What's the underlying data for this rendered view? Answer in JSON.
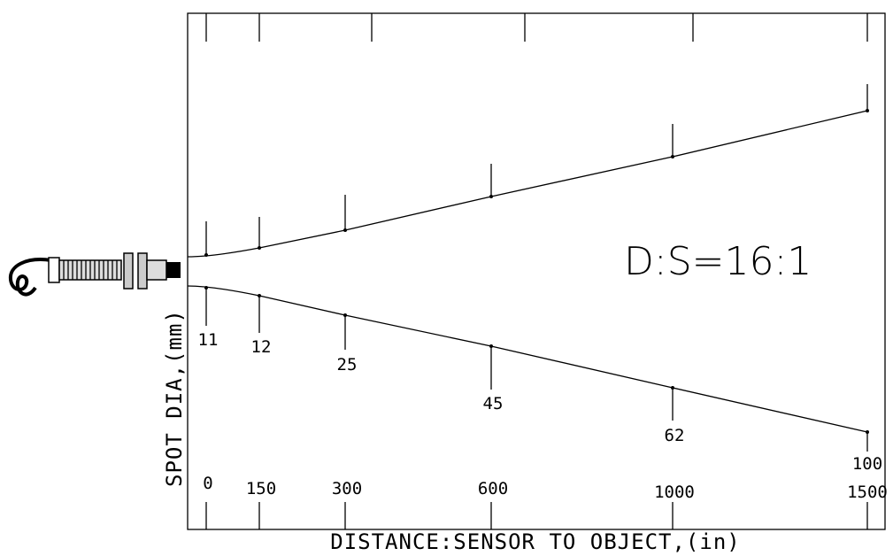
{
  "ratio": "D:S=16:1",
  "y_label": "SPOT DIA,(mm)",
  "x_label": "DISTANCE:SENSOR TO OBJECT,(in)",
  "points": [
    {
      "distance": "0",
      "spot": "11"
    },
    {
      "distance": "150",
      "spot": "12"
    },
    {
      "distance": "300",
      "spot": "25"
    },
    {
      "distance": "600",
      "spot": "45"
    },
    {
      "distance": "1000",
      "spot": "62"
    },
    {
      "distance": "1500",
      "spot": "100"
    }
  ]
}
